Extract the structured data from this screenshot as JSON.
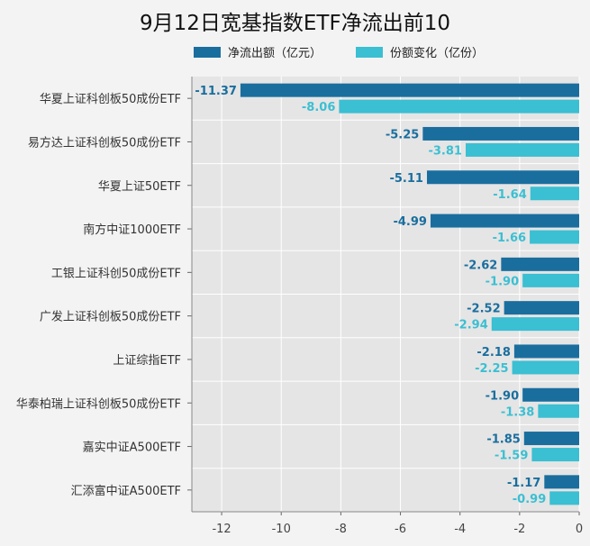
{
  "chart_data": {
    "type": "bar",
    "orientation": "horizontal",
    "title": "9月12日宽基指数ETF净流出前10",
    "categories": [
      "华夏上证科创板50成份ETF",
      "易方达上证科创板50成份ETF",
      "华夏上证50ETF",
      "南方中证1000ETF",
      "工银上证科创50成份ETF",
      "广发上证科创板50成份ETF",
      "上证综指ETF",
      "华泰柏瑞上证科创板50成份ETF",
      "嘉实中证A500ETF",
      "汇添富中证A500ETF"
    ],
    "series": [
      {
        "name": "净流出额（亿元）",
        "color": "#1a6e9e",
        "values": [
          -11.37,
          -5.25,
          -5.11,
          -4.99,
          -2.62,
          -2.52,
          -2.18,
          -1.9,
          -1.85,
          -1.17
        ],
        "labels": [
          "-11.37",
          "-5.25",
          "-5.11",
          "-4.99",
          "-2.62",
          "-2.52",
          "-2.18",
          "-1.90",
          "-1.85",
          "-1.17"
        ]
      },
      {
        "name": "份额变化（亿份）",
        "color": "#3bbfd2",
        "values": [
          -8.06,
          -3.81,
          -1.64,
          -1.66,
          -1.9,
          -2.94,
          -2.25,
          -1.38,
          -1.59,
          -0.99
        ],
        "labels": [
          "-8.06",
          "-3.81",
          "-1.64",
          "-1.66",
          "-1.90",
          "-2.94",
          "-2.25",
          "-1.38",
          "-1.59",
          "-0.99"
        ]
      }
    ],
    "xlim": [
      -13,
      0
    ],
    "xticks": [
      -12,
      -10,
      -8,
      -6,
      -4,
      -2,
      0
    ],
    "grid": true,
    "legend_position": "top"
  }
}
